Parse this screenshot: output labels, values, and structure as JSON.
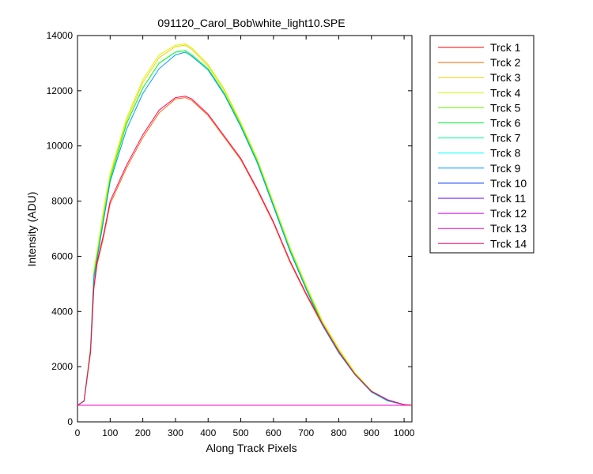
{
  "chart_data": {
    "type": "line",
    "title": "091120_Carol_Bob\\white_light10.SPE",
    "xlabel": "Along Track Pixels",
    "ylabel": "Intensity (ADU)",
    "xlim": [
      0,
      1024
    ],
    "ylim": [
      0,
      14000
    ],
    "xticks": [
      0,
      100,
      200,
      300,
      400,
      500,
      600,
      700,
      800,
      900,
      1000
    ],
    "yticks": [
      0,
      2000,
      4000,
      6000,
      8000,
      10000,
      12000,
      14000
    ],
    "grid": false,
    "legend_position": "outside-top-right",
    "series": [
      {
        "name": "Trck 1",
        "color": "#ff0000",
        "x": [
          0,
          50,
          100,
          150,
          200,
          250,
          300,
          330,
          350,
          400,
          450,
          500,
          550,
          600,
          650,
          700,
          750,
          800,
          850,
          900,
          950,
          1000,
          1024
        ],
        "y": [
          600,
          600,
          600,
          600,
          600,
          600,
          600,
          600,
          600,
          600,
          600,
          600,
          600,
          600,
          600,
          600,
          600,
          600,
          600,
          600,
          600,
          600,
          600
        ]
      },
      {
        "name": "Trck 2",
        "color": "#ff6600",
        "x": [
          0,
          20,
          40,
          50,
          60,
          80,
          100,
          150,
          200,
          250,
          300,
          330,
          350,
          400,
          450,
          500,
          550,
          600,
          650,
          700,
          750,
          800,
          850,
          900,
          950,
          1000,
          1024
        ],
        "y": [
          600,
          750,
          2500,
          4800,
          5700,
          6700,
          7900,
          9200,
          10300,
          11200,
          11700,
          11750,
          11650,
          11100,
          10300,
          9500,
          8400,
          7200,
          5800,
          4600,
          3500,
          2500,
          1700,
          1100,
          800,
          620,
          600
        ]
      },
      {
        "name": "Trck 3",
        "color": "#ffcc00",
        "x": [
          0,
          20,
          40,
          50,
          60,
          80,
          100,
          150,
          200,
          250,
          300,
          330,
          350,
          400,
          450,
          500,
          550,
          600,
          650,
          700,
          750,
          800,
          850,
          900,
          950,
          1000,
          1024
        ],
        "y": [
          600,
          760,
          2700,
          5400,
          6100,
          7600,
          8900,
          10900,
          12300,
          13200,
          13600,
          13650,
          13500,
          12900,
          12000,
          10800,
          9500,
          7900,
          6300,
          4900,
          3600,
          2600,
          1750,
          1120,
          780,
          620,
          600
        ]
      },
      {
        "name": "Trck 4",
        "color": "#ccff00",
        "x": [
          0,
          20,
          40,
          50,
          60,
          80,
          100,
          150,
          200,
          250,
          300,
          330,
          350,
          400,
          450,
          500,
          550,
          600,
          650,
          700,
          750,
          800,
          850,
          900,
          950,
          1000,
          1024
        ],
        "y": [
          600,
          760,
          2700,
          5500,
          6200,
          7700,
          9000,
          11000,
          12400,
          13300,
          13650,
          13700,
          13550,
          12950,
          12050,
          10850,
          9550,
          7950,
          6350,
          4950,
          3650,
          2650,
          1780,
          1130,
          790,
          620,
          600
        ]
      },
      {
        "name": "Trck 5",
        "color": "#66ff00",
        "x": [
          0,
          20,
          40,
          50,
          60,
          80,
          100,
          150,
          200,
          250,
          300,
          330,
          350,
          400,
          450,
          500,
          550,
          600,
          650,
          700,
          750,
          800,
          850,
          900,
          950,
          1000,
          1024
        ],
        "y": [
          600,
          760,
          2600,
          5300,
          6000,
          7400,
          8800,
          10800,
          12100,
          13000,
          13400,
          13450,
          13300,
          12800,
          11900,
          10750,
          9450,
          7850,
          6250,
          4850,
          3550,
          2550,
          1720,
          1100,
          770,
          620,
          600
        ]
      },
      {
        "name": "Trck 6",
        "color": "#00ff33",
        "x": [
          0,
          20,
          40,
          50,
          60,
          80,
          100,
          150,
          200,
          250,
          300,
          330,
          350,
          400,
          450,
          500,
          550,
          600,
          650,
          700,
          750,
          800,
          850,
          900,
          950,
          1000,
          1024
        ],
        "y": [
          600,
          760,
          2600,
          5300,
          6000,
          7400,
          8800,
          10800,
          12100,
          13000,
          13400,
          13450,
          13300,
          12800,
          11900,
          10750,
          9450,
          7850,
          6250,
          4850,
          3550,
          2550,
          1720,
          1100,
          770,
          620,
          600
        ]
      },
      {
        "name": "Trck 7",
        "color": "#00ff99",
        "x": [
          0,
          50,
          100,
          150,
          200,
          250,
          300,
          330,
          350,
          400,
          450,
          500,
          550,
          600,
          650,
          700,
          750,
          800,
          850,
          900,
          950,
          1000,
          1024
        ],
        "y": [
          600,
          600,
          600,
          600,
          600,
          600,
          600,
          600,
          600,
          600,
          600,
          600,
          600,
          600,
          600,
          600,
          600,
          600,
          600,
          600,
          600,
          600,
          600
        ]
      },
      {
        "name": "Trck 8",
        "color": "#00ffff",
        "x": [
          0,
          50,
          100,
          150,
          200,
          250,
          300,
          330,
          350,
          400,
          450,
          500,
          550,
          600,
          650,
          700,
          750,
          800,
          850,
          900,
          950,
          1000,
          1024
        ],
        "y": [
          600,
          600,
          600,
          600,
          600,
          600,
          600,
          600,
          600,
          600,
          600,
          600,
          600,
          600,
          600,
          600,
          600,
          600,
          600,
          600,
          600,
          600,
          600
        ]
      },
      {
        "name": "Trck 9",
        "color": "#0099ff",
        "x": [
          0,
          20,
          40,
          50,
          60,
          80,
          100,
          150,
          200,
          250,
          300,
          330,
          350,
          400,
          450,
          500,
          550,
          600,
          650,
          700,
          750,
          800,
          850,
          900,
          950,
          1000,
          1024
        ],
        "y": [
          600,
          750,
          2600,
          5200,
          5900,
          7300,
          8700,
          10600,
          11900,
          12800,
          13300,
          13400,
          13250,
          12750,
          11850,
          10700,
          9400,
          7800,
          6200,
          4800,
          3500,
          2500,
          1700,
          1080,
          760,
          620,
          600
        ]
      },
      {
        "name": "Trck 10",
        "color": "#0033ff",
        "x": [
          0,
          50,
          100,
          150,
          200,
          250,
          300,
          330,
          350,
          400,
          450,
          500,
          550,
          600,
          650,
          700,
          750,
          800,
          850,
          900,
          950,
          1000,
          1024
        ],
        "y": [
          600,
          600,
          600,
          600,
          600,
          600,
          600,
          600,
          600,
          600,
          600,
          600,
          600,
          600,
          600,
          600,
          600,
          600,
          600,
          600,
          600,
          600,
          600
        ]
      },
      {
        "name": "Trck 11",
        "color": "#6600ff",
        "x": [
          0,
          50,
          100,
          150,
          200,
          250,
          300,
          330,
          350,
          400,
          450,
          500,
          550,
          600,
          650,
          700,
          750,
          800,
          850,
          900,
          950,
          1000,
          1024
        ],
        "y": [
          600,
          600,
          600,
          600,
          600,
          600,
          600,
          600,
          600,
          600,
          600,
          600,
          600,
          600,
          600,
          600,
          600,
          600,
          600,
          600,
          600,
          600,
          600
        ]
      },
      {
        "name": "Trck 12",
        "color": "#cc00ff",
        "x": [
          0,
          50,
          100,
          150,
          200,
          250,
          300,
          330,
          350,
          400,
          450,
          500,
          550,
          600,
          650,
          700,
          750,
          800,
          850,
          900,
          950,
          1000,
          1024
        ],
        "y": [
          600,
          600,
          600,
          600,
          600,
          600,
          600,
          600,
          600,
          600,
          600,
          600,
          600,
          600,
          600,
          600,
          600,
          600,
          600,
          600,
          600,
          600,
          600
        ]
      },
      {
        "name": "Trck 13",
        "color": "#ff00cc",
        "x": [
          0,
          50,
          100,
          150,
          200,
          250,
          300,
          330,
          350,
          400,
          450,
          500,
          550,
          600,
          650,
          700,
          750,
          800,
          850,
          900,
          950,
          1000,
          1024
        ],
        "y": [
          600,
          600,
          600,
          600,
          600,
          600,
          600,
          600,
          600,
          600,
          600,
          600,
          600,
          600,
          600,
          600,
          600,
          600,
          600,
          600,
          600,
          600,
          600
        ]
      },
      {
        "name": "Trck 14",
        "color": "#ff0066",
        "x": [
          0,
          20,
          40,
          50,
          60,
          80,
          100,
          150,
          200,
          250,
          300,
          330,
          350,
          400,
          450,
          500,
          550,
          600,
          650,
          700,
          750,
          800,
          850,
          900,
          950,
          1000,
          1024
        ],
        "y": [
          600,
          760,
          2550,
          4900,
          5800,
          6800,
          8000,
          9300,
          10400,
          11300,
          11750,
          11800,
          11700,
          11150,
          10350,
          9550,
          8450,
          7250,
          5850,
          4650,
          3550,
          2550,
          1720,
          1110,
          800,
          620,
          600
        ]
      }
    ]
  }
}
